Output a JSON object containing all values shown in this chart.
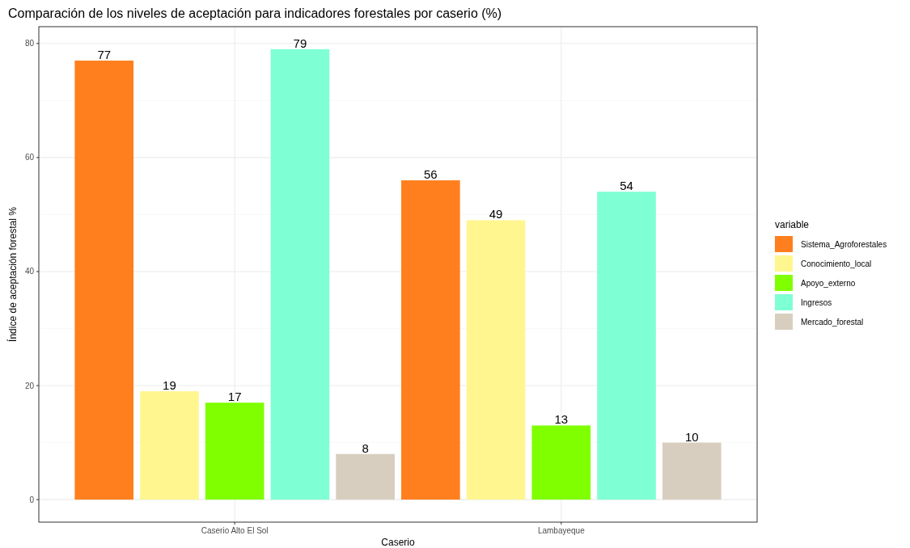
{
  "chart_data": {
    "type": "bar",
    "title": "Comparación de los niveles de aceptación para indicadores forestales por caserio (%)",
    "xlabel": "Caserio",
    "ylabel": "Índice de aceptación forestal %",
    "legend_title": "variable",
    "categories": [
      "Caserio Alto El Sol",
      "Lambayeque"
    ],
    "series": [
      {
        "name": "Sistema_Agroforestales",
        "color": "#ff7f1e",
        "values": [
          77,
          56
        ]
      },
      {
        "name": "Conocimiento_local",
        "color": "#fff68f",
        "values": [
          19,
          49
        ]
      },
      {
        "name": "Apoyo_externo",
        "color": "#7fff00",
        "values": [
          17,
          13
        ]
      },
      {
        "name": "Ingresos",
        "color": "#7fffd4",
        "values": [
          79,
          54
        ]
      },
      {
        "name": "Mercado_forestal",
        "color": "#d8cebf",
        "values": [
          8,
          10
        ]
      }
    ],
    "ylim": [
      -3.95,
      82.95
    ],
    "yticks": [
      0,
      20,
      40,
      60,
      80
    ],
    "grid": true,
    "legend": "right",
    "data_labels": true
  }
}
